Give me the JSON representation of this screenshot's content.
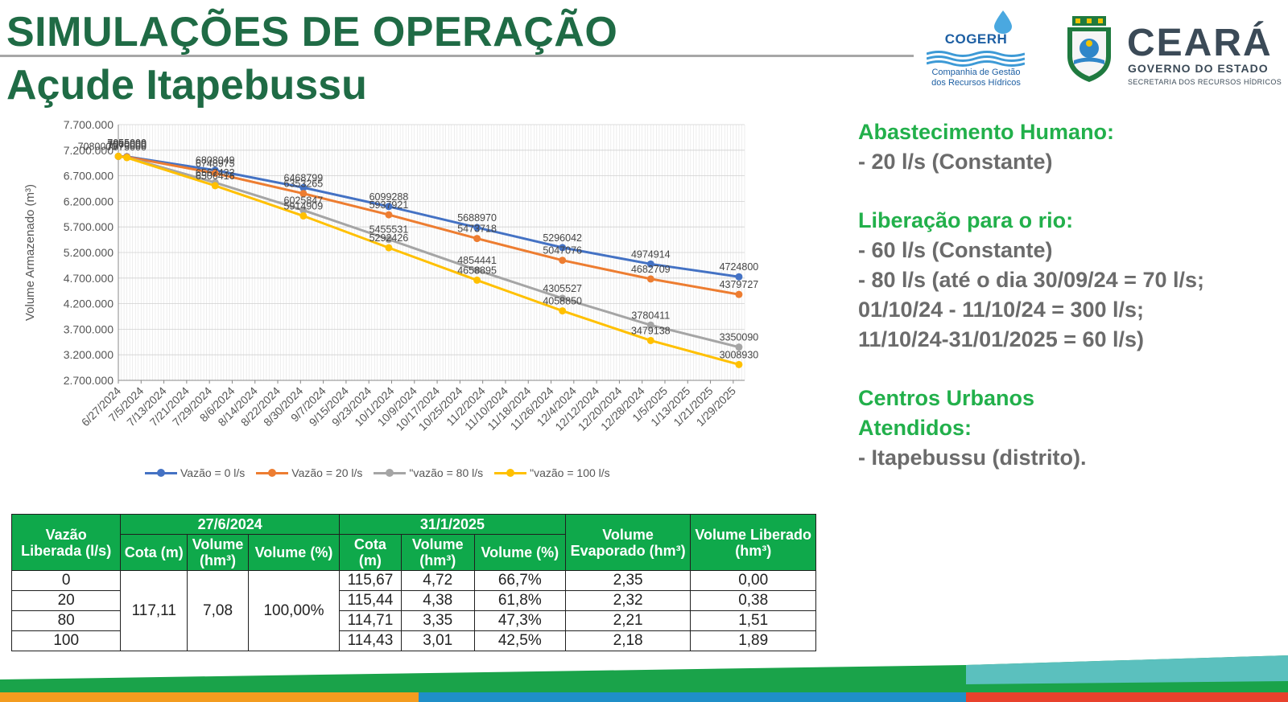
{
  "header": {
    "title": "SIMULAÇÕES DE OPERAÇÃO",
    "subtitle": "Açude Itapebussu"
  },
  "logos": {
    "cogerh_name": "COGERH",
    "cogerh_line1": "Companhia de Gestão",
    "cogerh_line2": "dos Recursos Hídricos",
    "ceara_name": "CEARÁ",
    "ceara_gov": "GOVERNO DO ESTADO",
    "ceara_sec": "SECRETARIA DOS RECURSOS HÍDRICOS"
  },
  "info": {
    "h1": "Abastecimento Humano:",
    "t1": "- 20 l/s (Constante)",
    "h2": "Liberação para o rio:",
    "t2a": "- 60 l/s (Constante)",
    "t2b": "- 80 l/s (até o dia 30/09/24 = 70 l/s;",
    "t2c": "01/10/24 - 11/10/24 = 300 l/s;",
    "t2d": "11/10/24-31/01/2025 = 60 l/s)",
    "h3a": "Centros Urbanos",
    "h3b": "Atendidos:",
    "t3": "- Itapebussu (distrito)."
  },
  "chart_data": {
    "type": "line",
    "ylabel": "Volume Armazenado (m³)",
    "xlabel": "",
    "ylim": [
      2700000,
      7700000
    ],
    "yticks": [
      "7.700.000",
      "7.200.000",
      "6.700.000",
      "6.200.000",
      "5.700.000",
      "5.200.000",
      "4.700.000",
      "4.200.000",
      "3.700.000",
      "3.200.000",
      "2.700.000"
    ],
    "xlim": [
      "2024-06-27",
      "2025-02-02"
    ],
    "xticks": [
      "6/27/2024",
      "7/5/2024",
      "7/13/2024",
      "7/21/2024",
      "7/29/2024",
      "8/6/2024",
      "8/14/2024",
      "8/22/2024",
      "8/30/2024",
      "9/7/2024",
      "9/15/2024",
      "9/23/2024",
      "10/1/2024",
      "10/9/2024",
      "10/17/2024",
      "10/25/2024",
      "11/2/2024",
      "11/10/2024",
      "11/18/2024",
      "11/26/2024",
      "12/4/2024",
      "12/12/2024",
      "12/20/2024",
      "12/28/2024",
      "1/5/2025",
      "1/13/2025",
      "1/21/2025",
      "1/29/2025"
    ],
    "x": [
      "2024-06-27",
      "2024-06-30",
      "2024-07-31",
      "2024-08-31",
      "2024-09-30",
      "2024-10-31",
      "2024-11-30",
      "2024-12-31",
      "2025-01-31"
    ],
    "series": [
      {
        "name": "Vazão = 0 l/s",
        "color": "#4472c4",
        "values": [
          7080000,
          7075000,
          6808049,
          6468799,
          6099288,
          5688970,
          5296042,
          4974914,
          4724800
        ],
        "labels": [
          "",
          "7075000",
          "6808049",
          "6468799",
          "6099288",
          "5688970",
          "5296042",
          "4974914",
          "4724800"
        ]
      },
      {
        "name": "Vazão = 20 l/s",
        "color": "#ed7d31",
        "values": [
          7080000,
          7070000,
          6748975,
          6353265,
          5937921,
          5473718,
          5047076,
          4682709,
          4379727
        ],
        "labels": [
          "",
          "7070000",
          "6748975",
          "6353265",
          "5937921",
          "5473718",
          "5047076",
          "4682709",
          "4379727"
        ]
      },
      {
        "name": "\"vazão = 80 l/s",
        "color": "#a5a5a5",
        "values": [
          7080000,
          7060000,
          6567432,
          6025847,
          5455531,
          4854441,
          4305527,
          3780411,
          3350090
        ],
        "labels": [
          "",
          "7060000",
          "6567432",
          "6025847",
          "5455531",
          "4854441",
          "4305527",
          "3780411",
          "3350090"
        ]
      },
      {
        "name": "\"vazão = 100 l/s",
        "color": "#ffc000",
        "values": [
          7080000,
          7055000,
          6506416,
          5914909,
          5292426,
          4658895,
          4058850,
          3479138,
          3008930
        ],
        "labels": [
          "7080000",
          "7055000",
          "6506416",
          "5914909",
          "5292426",
          "4658895",
          "4058850",
          "3479138",
          "3008930"
        ]
      }
    ],
    "grid": true,
    "legend": "bottom"
  },
  "table": {
    "h_vazao": "Vazão Liberada (l/s)",
    "h_date1": "27/6/2024",
    "h_date2": "31/1/2025",
    "h_cota": "Cota (m)",
    "h_volume": "Volume (hm³)",
    "h_volpct": "Volume (%)",
    "h_evap": "Volume Evaporado (hm³)",
    "h_lib": "Volume Liberado (hm³)",
    "initial": {
      "cota": "117,11",
      "volume": "7,08",
      "pct": "100,00%"
    },
    "rows": [
      {
        "vazao": "0",
        "cota": "115,67",
        "volume": "4,72",
        "pct": "66,7%",
        "evap": "2,35",
        "lib": "0,00"
      },
      {
        "vazao": "20",
        "cota": "115,44",
        "volume": "4,38",
        "pct": "61,8%",
        "evap": "2,32",
        "lib": "0,38"
      },
      {
        "vazao": "80",
        "cota": "114,71",
        "volume": "3,35",
        "pct": "47,3%",
        "evap": "2,21",
        "lib": "1,51"
      },
      {
        "vazao": "100",
        "cota": "114,43",
        "volume": "3,01",
        "pct": "42,5%",
        "evap": "2,18",
        "lib": "1,89"
      }
    ]
  }
}
